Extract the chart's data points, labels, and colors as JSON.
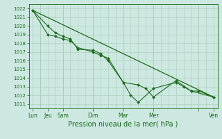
{
  "bg_color": "#cce8e0",
  "grid_color": "#aaccbb",
  "line_color": "#1a6b1a",
  "marker_color": "#1a6b1a",
  "xlabel": "Pression niveau de la mer( hPa )",
  "ylim": [
    1010.5,
    1022.5
  ],
  "yticks": [
    1011,
    1012,
    1013,
    1014,
    1015,
    1016,
    1017,
    1018,
    1019,
    1020,
    1021,
    1022
  ],
  "series1_x": [
    0,
    2,
    3,
    4,
    5,
    6,
    8,
    9,
    10,
    12,
    14,
    15,
    16,
    19,
    21,
    22,
    24
  ],
  "series1_y": [
    1021.8,
    1019.0,
    1018.8,
    1018.5,
    1018.3,
    1017.5,
    1017.0,
    1016.6,
    1016.3,
    1013.5,
    1013.2,
    1012.8,
    1011.8,
    1013.7,
    1012.5,
    1012.5,
    1011.8
  ],
  "series2_x": [
    0,
    2,
    3,
    4,
    5,
    6,
    8,
    9,
    10,
    12,
    13,
    14,
    16,
    19,
    20,
    21,
    24
  ],
  "series2_y": [
    1021.8,
    1020.0,
    1019.2,
    1018.8,
    1018.5,
    1017.3,
    1017.2,
    1016.8,
    1016.0,
    1013.5,
    1012.0,
    1011.2,
    1012.8,
    1013.5,
    1013.0,
    1012.5,
    1011.8
  ],
  "trend_x": [
    0,
    24
  ],
  "trend_y": [
    1021.8,
    1011.8
  ],
  "xlim": [
    -0.5,
    24.5
  ],
  "xtick_positions": [
    0,
    2,
    4,
    8,
    12,
    16,
    22,
    24
  ],
  "xtick_labels": [
    "Lun",
    "Jeu",
    "Sam",
    "Dim",
    "Mar",
    "Mer",
    "",
    "Ven"
  ],
  "vline_positions": [
    1,
    4,
    8,
    12,
    16,
    22
  ],
  "xlabel_fontsize": 7,
  "ytick_fontsize": 5,
  "xtick_fontsize": 5.5
}
